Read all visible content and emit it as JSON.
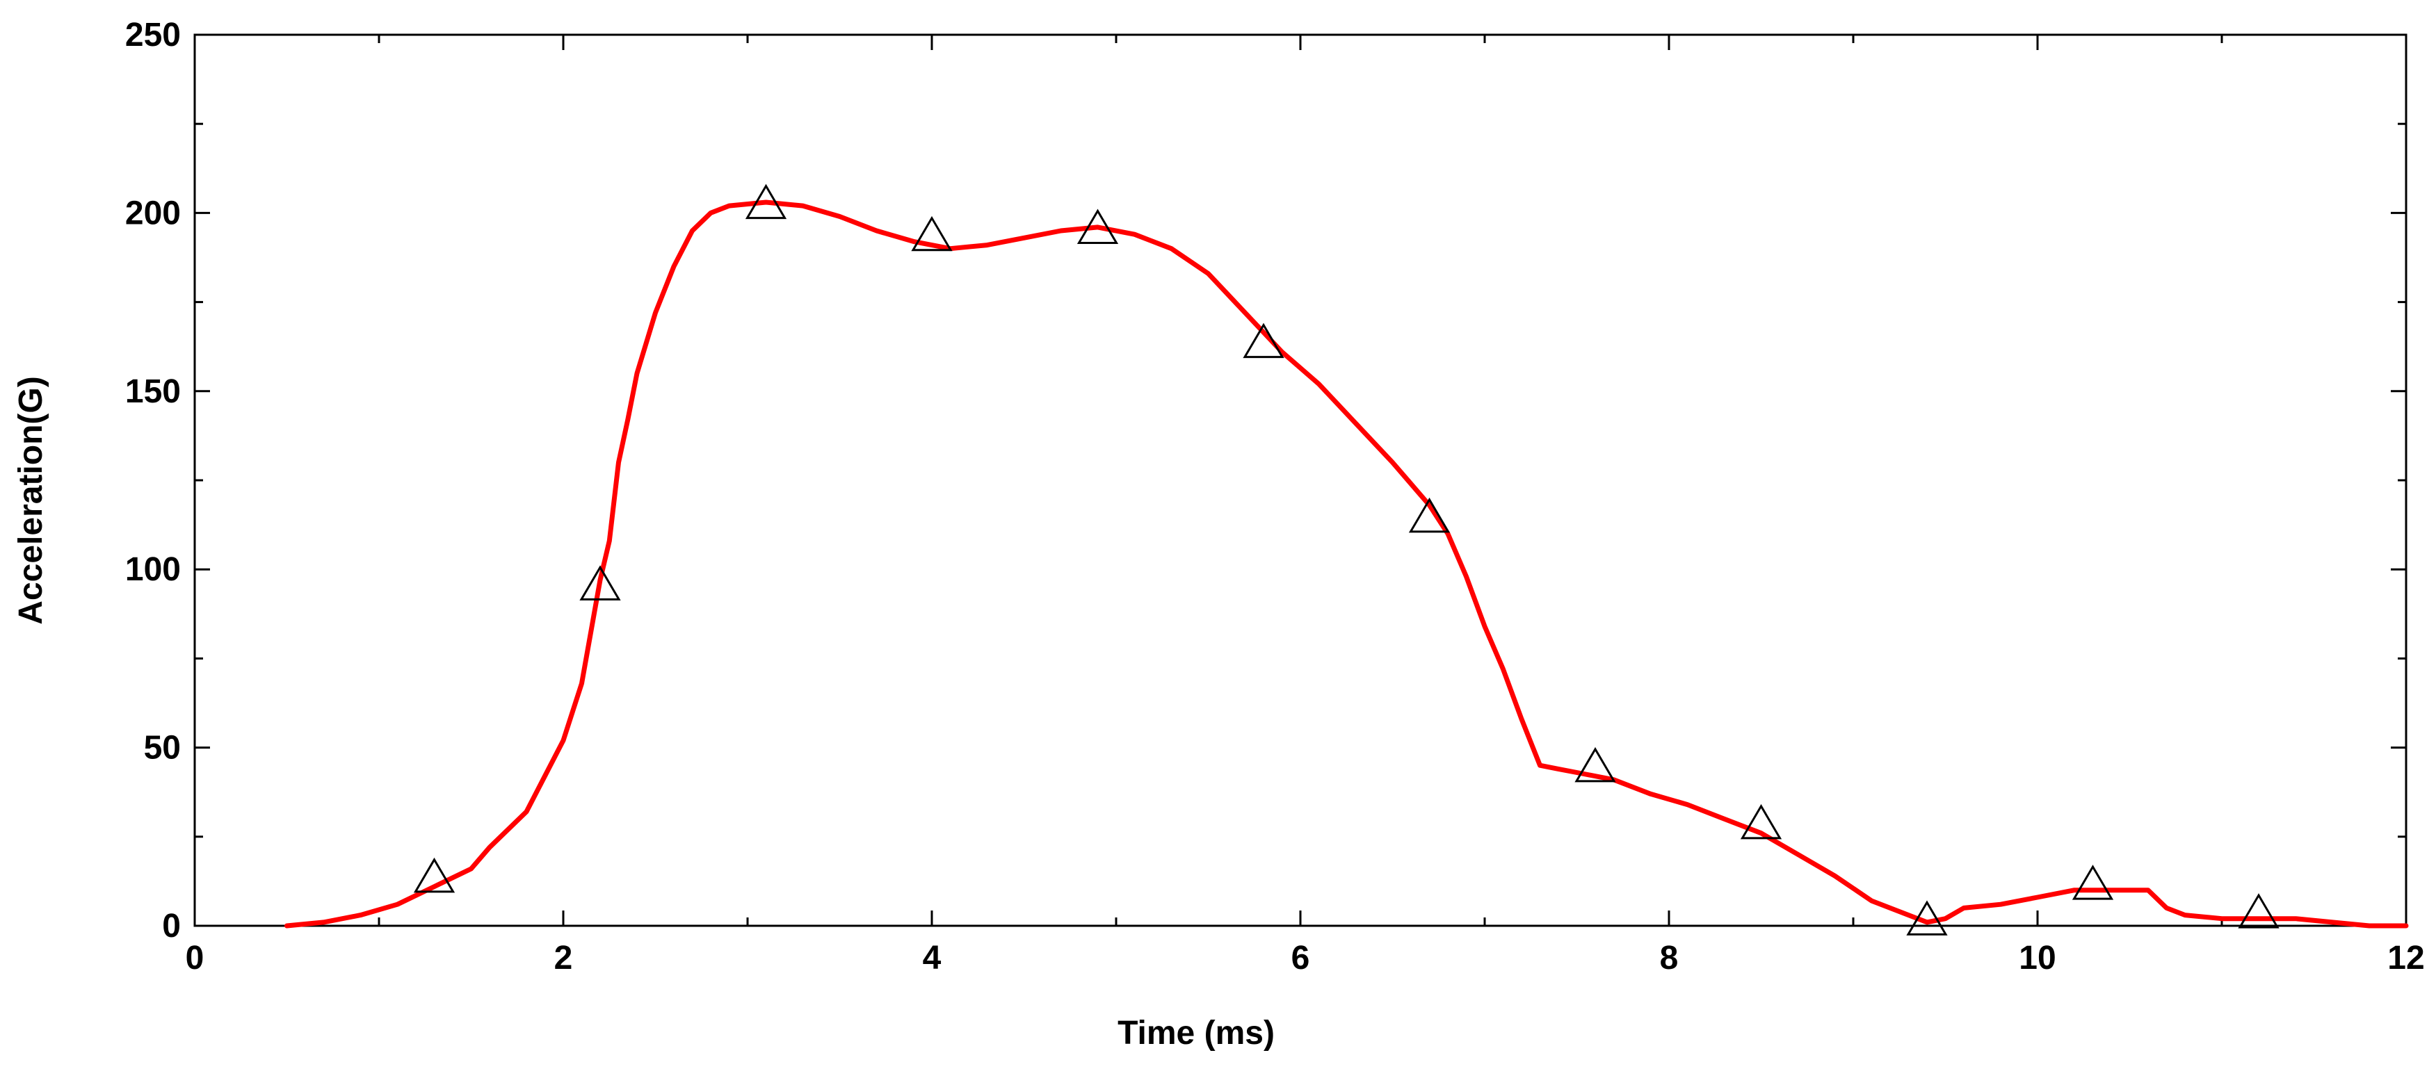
{
  "chart_data": {
    "type": "line",
    "xlabel": "Time (ms)",
    "ylabel": "Acceleration(G)",
    "xlim": [
      0,
      12
    ],
    "ylim": [
      0,
      250
    ],
    "x_ticks": [
      0,
      2,
      4,
      6,
      8,
      10,
      12
    ],
    "x_tick_labels": [
      "0",
      "2",
      "4",
      "6",
      "8",
      "10",
      "12"
    ],
    "y_ticks": [
      0,
      50,
      100,
      150,
      200,
      250
    ],
    "y_tick_labels": [
      "0",
      "50",
      "100",
      "150",
      "200",
      "250"
    ],
    "x_minor_step": 1,
    "y_minor_step": 25,
    "grid": false,
    "legend": "none",
    "series": [
      {
        "color": "#ff0000",
        "marker": "triangle",
        "x": [
          0.5,
          0.7,
          0.9,
          1.1,
          1.3,
          1.5,
          1.6,
          1.8,
          1.9,
          2.0,
          2.1,
          2.2,
          2.25,
          2.3,
          2.35,
          2.4,
          2.5,
          2.6,
          2.7,
          2.8,
          2.9,
          3.1,
          3.3,
          3.5,
          3.7,
          3.9,
          4.1,
          4.3,
          4.5,
          4.7,
          4.9,
          5.1,
          5.3,
          5.5,
          5.7,
          5.9,
          6.1,
          6.3,
          6.5,
          6.7,
          6.8,
          6.9,
          7.0,
          7.1,
          7.2,
          7.3,
          7.4,
          7.5,
          7.7,
          7.9,
          8.1,
          8.3,
          8.5,
          8.7,
          8.9,
          9.1,
          9.3,
          9.4,
          9.5,
          9.6,
          9.8,
          10.0,
          10.2,
          10.4,
          10.6,
          10.7,
          10.8,
          11.0,
          11.2,
          11.4,
          11.6,
          11.8,
          12.0
        ],
        "y": [
          0,
          1,
          3,
          6,
          11,
          16,
          22,
          32,
          42,
          52,
          68,
          97,
          108,
          130,
          142,
          155,
          172,
          185,
          195,
          200,
          202,
          203,
          202,
          199,
          195,
          192,
          190,
          191,
          193,
          195,
          196,
          194,
          190,
          183,
          172,
          161,
          152,
          141,
          130,
          118,
          110,
          98,
          84,
          72,
          58,
          45,
          44,
          43,
          41,
          37,
          34,
          30,
          26,
          20,
          14,
          7,
          3,
          1,
          2,
          5,
          6,
          8,
          10,
          10,
          10,
          5,
          3,
          2,
          2,
          2,
          1,
          0,
          0
        ],
        "markers_x": [
          1.3,
          2.2,
          3.1,
          4.0,
          4.9,
          5.8,
          6.7,
          7.6,
          8.5,
          9.4,
          10.3,
          11.2
        ],
        "markers_y": [
          13,
          95,
          202,
          193,
          195,
          163,
          114,
          44,
          28,
          1,
          11,
          3
        ]
      }
    ]
  }
}
